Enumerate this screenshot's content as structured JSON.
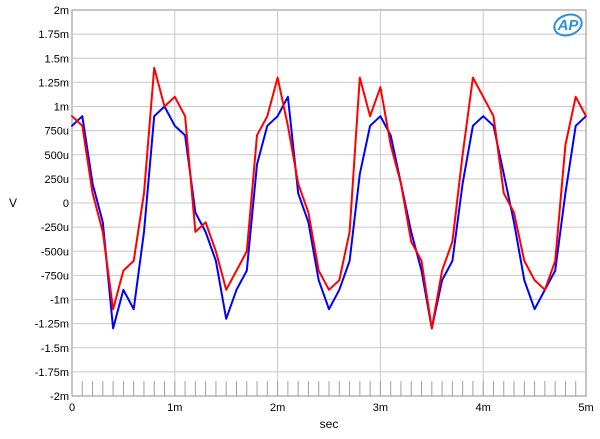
{
  "chart_data": {
    "type": "line",
    "xlabel": "sec",
    "ylabel": "V",
    "xlim": [
      0,
      0.005
    ],
    "ylim": [
      -0.002,
      0.002
    ],
    "grid": true,
    "x_tick_values": [
      0,
      0.001,
      0.002,
      0.003,
      0.004,
      0.005
    ],
    "x_tick_labels": [
      "0",
      "1m",
      "2m",
      "3m",
      "4m",
      "5m"
    ],
    "y_tick_values": [
      0.002,
      0.00175,
      0.0015,
      0.00125,
      0.001,
      0.00075,
      0.0005,
      0.00025,
      0,
      -0.00025,
      -0.0005,
      -0.00075,
      -0.001,
      -0.00125,
      -0.0015,
      -0.00175,
      -0.002
    ],
    "y_tick_labels": [
      "2m",
      "1.75m",
      "1.5m",
      "1.25m",
      "1m",
      "750u",
      "500u",
      "250u",
      "0",
      "-250u",
      "-500u",
      "-750u",
      "-1m",
      "-1.25m",
      "-1.5m",
      "-1.75m",
      "-2m"
    ],
    "logo_text": "AP",
    "series": [
      {
        "color": "#0000ff",
        "x": [
          0,
          0.0001,
          0.0002,
          0.0003,
          0.0004,
          0.0005,
          0.0006,
          0.0007,
          0.0008,
          0.0009,
          0.001,
          0.0011,
          0.0012,
          0.0013,
          0.0014,
          0.0015,
          0.0016,
          0.0017,
          0.0018,
          0.0019,
          0.002,
          0.0021,
          0.0022,
          0.0023,
          0.0024,
          0.0025,
          0.0026,
          0.0027,
          0.0028,
          0.0029,
          0.003,
          0.0031,
          0.0032,
          0.0033,
          0.0034,
          0.0035,
          0.0036,
          0.0037,
          0.0038,
          0.0039,
          0.004,
          0.0041,
          0.0042,
          0.0043,
          0.0044,
          0.0045,
          0.0046,
          0.0047,
          0.0048,
          0.0049,
          0.005
        ],
        "y": [
          0.0008,
          0.0009,
          0.0002,
          -0.0002,
          -0.0013,
          -0.0009,
          -0.0011,
          -0.0003,
          0.0009,
          0.001,
          0.0008,
          0.0007,
          -0.0001,
          -0.0003,
          -0.0006,
          -0.0012,
          -0.0009,
          -0.0007,
          0.0004,
          0.0008,
          0.0009,
          0.0011,
          0.0001,
          -0.0002,
          -0.0008,
          -0.0011,
          -0.0009,
          -0.0006,
          0.0003,
          0.0008,
          0.0009,
          0.0007,
          0.0002,
          -0.0003,
          -0.0007,
          -0.0013,
          -0.0008,
          -0.0006,
          0.0002,
          0.0008,
          0.0009,
          0.0008,
          0.0003,
          -0.0002,
          -0.0008,
          -0.0011,
          -0.0009,
          -0.0007,
          0.0001,
          0.0008,
          0.0009
        ]
      },
      {
        "color": "#ff0000",
        "x": [
          0,
          0.0001,
          0.0002,
          0.0003,
          0.0004,
          0.0005,
          0.0006,
          0.0007,
          0.0008,
          0.0009,
          0.001,
          0.0011,
          0.0012,
          0.0013,
          0.0014,
          0.0015,
          0.0016,
          0.0017,
          0.0018,
          0.0019,
          0.002,
          0.0021,
          0.0022,
          0.0023,
          0.0024,
          0.0025,
          0.0026,
          0.0027,
          0.0028,
          0.0029,
          0.003,
          0.0031,
          0.0032,
          0.0033,
          0.0034,
          0.0035,
          0.0036,
          0.0037,
          0.0038,
          0.0039,
          0.004,
          0.0041,
          0.0042,
          0.0043,
          0.0044,
          0.0045,
          0.0046,
          0.0047,
          0.0048,
          0.0049,
          0.005
        ],
        "y": [
          0.0009,
          0.0008,
          0.0001,
          -0.0003,
          -0.0011,
          -0.0007,
          -0.0006,
          0.0001,
          0.0014,
          0.001,
          0.0011,
          0.0009,
          -0.0003,
          -0.0002,
          -0.0005,
          -0.0009,
          -0.0007,
          -0.0005,
          0.0007,
          0.0009,
          0.0013,
          0.0008,
          0.0002,
          -0.0001,
          -0.0007,
          -0.0009,
          -0.0008,
          -0.0003,
          0.0013,
          0.0009,
          0.0012,
          0.0006,
          0.0002,
          -0.0004,
          -0.0006,
          -0.0013,
          -0.0007,
          -0.0004,
          0.0005,
          0.0013,
          0.0011,
          0.0009,
          0.0001,
          -0.0001,
          -0.0006,
          -0.0008,
          -0.0009,
          -0.0006,
          0.0006,
          0.0011,
          0.0009
        ]
      }
    ]
  }
}
